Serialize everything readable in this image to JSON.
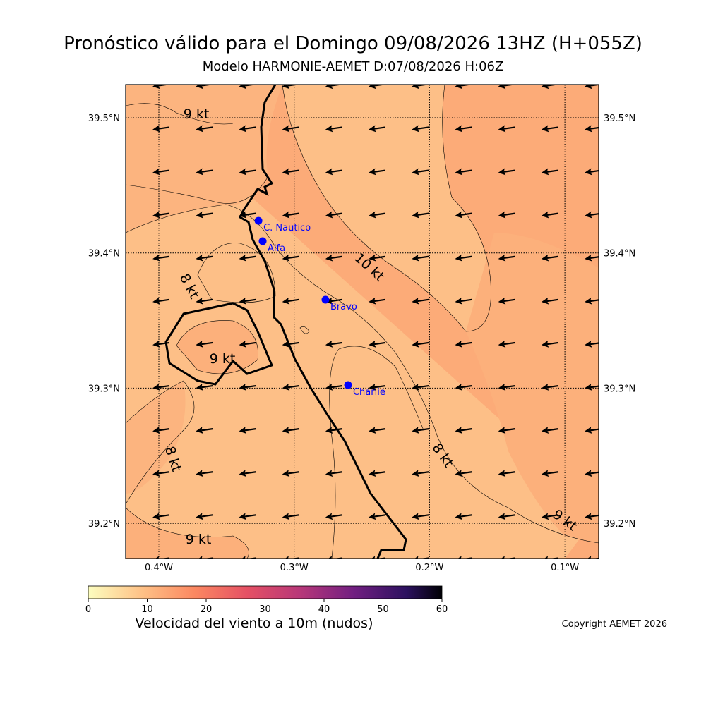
{
  "header": {
    "title": "Pronóstico válido para el Domingo 09/08/2026 13HZ (H+055Z)",
    "subtitle": "Modelo HARMONIE-AEMET D:07/08/2026 H:06Z"
  },
  "map": {
    "lat_ticks": [
      {
        "value": 39.5,
        "label": "39.5°N"
      },
      {
        "value": 39.4,
        "label": "39.4°N"
      },
      {
        "value": 39.3,
        "label": "39.3°N"
      },
      {
        "value": 39.2,
        "label": "39.2°N"
      }
    ],
    "lon_ticks": [
      {
        "value": -0.4,
        "label": "0.4°W"
      },
      {
        "value": -0.3,
        "label": "0.3°W"
      },
      {
        "value": -0.2,
        "label": "0.2°W"
      },
      {
        "value": -0.1,
        "label": "0.1°W"
      }
    ],
    "contour_labels": [
      "9 kt",
      "8 kt",
      "9 kt",
      "8 kt",
      "9 kt",
      "10 kt",
      "8 kt",
      "9 kt"
    ],
    "stations": [
      {
        "name": "C. Nautico",
        "lon": -0.3264,
        "lat": 39.4238
      },
      {
        "name": "Alfa",
        "lon": -0.3233,
        "lat": 39.4087
      },
      {
        "name": "Bravo",
        "lon": -0.2769,
        "lat": 39.3654
      },
      {
        "name": "Charlie",
        "lon": -0.2602,
        "lat": 39.3023
      }
    ]
  },
  "colorbar": {
    "label": "Velocidad del viento a 10m (nudos)",
    "ticks": [
      0,
      10,
      20,
      30,
      40,
      50,
      60
    ]
  },
  "footer": {
    "copyright": "Copyright AEMET 2026"
  }
}
